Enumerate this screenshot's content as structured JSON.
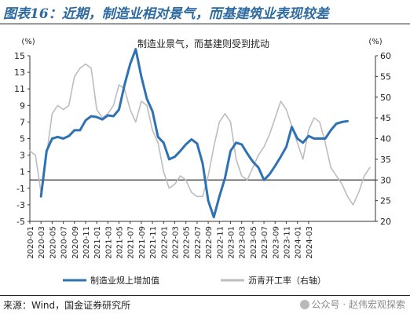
{
  "title": "图表16：近期，制造业相对景气，而基建筑业表现较差",
  "source": "来源：Wind，国金证券研究所",
  "watermark": "公众号 · 赵伟宏观探索",
  "chart_data": {
    "type": "line",
    "annotation": "制造业景气，而基建则受到扰动",
    "left_axis": {
      "unit": "(%)",
      "ylim": [
        -5,
        15
      ],
      "ticks": [
        -5,
        -3,
        -1,
        1,
        3,
        5,
        7,
        9,
        11,
        13,
        15
      ]
    },
    "right_axis": {
      "unit": "(%)",
      "ylim": [
        20,
        60
      ],
      "ticks": [
        20,
        25,
        30,
        35,
        40,
        45,
        50,
        55,
        60
      ]
    },
    "x_tick_labels": [
      "2020-01",
      "2020-03",
      "2020-05",
      "2020-07",
      "2020-09",
      "2020-11",
      "2021-01",
      "2021-03",
      "2021-05",
      "2021-07",
      "2021-09",
      "2021-11",
      "2022-01",
      "2022-03",
      "2022-05",
      "2022-07",
      "2022-09",
      "2022-11",
      "2023-01",
      "2023-03",
      "2023-05",
      "2023-07",
      "2023-09",
      "2023-11",
      "2024-01",
      "2024-03"
    ],
    "legend_position": "bottom",
    "colors": {
      "manufacturing": "#2e72b4",
      "asphalt": "#bdbdbd",
      "zero_line": "#333333"
    },
    "series": [
      {
        "name": "制造业规上增加值",
        "axis": "left",
        "points": [
          [
            "2020-03",
            -2.0
          ],
          [
            "2020-04",
            3.5
          ],
          [
            "2020-05",
            5.0
          ],
          [
            "2020-06",
            5.2
          ],
          [
            "2020-07",
            5.0
          ],
          [
            "2020-08",
            5.3
          ],
          [
            "2020-09",
            6.0
          ],
          [
            "2020-10",
            6.0
          ],
          [
            "2020-11",
            7.2
          ],
          [
            "2020-12",
            7.7
          ],
          [
            "2021-01",
            7.6
          ],
          [
            "2021-02",
            7.3
          ],
          [
            "2021-03",
            7.8
          ],
          [
            "2021-04",
            7.7
          ],
          [
            "2021-05",
            8.5
          ],
          [
            "2021-06",
            11.5
          ],
          [
            "2021-07",
            14.0
          ],
          [
            "2021-08",
            15.8
          ],
          [
            "2021-09",
            12.5
          ],
          [
            "2021-10",
            9.8
          ],
          [
            "2021-11",
            8.3
          ],
          [
            "2021-12",
            5.2
          ],
          [
            "2022-01",
            4.5
          ],
          [
            "2022-02",
            2.5
          ],
          [
            "2022-03",
            2.8
          ],
          [
            "2022-04",
            3.5
          ],
          [
            "2022-05",
            4.3
          ],
          [
            "2022-06",
            4.9
          ],
          [
            "2022-07",
            4.4
          ],
          [
            "2022-08",
            2.0
          ],
          [
            "2022-09",
            -2.5
          ],
          [
            "2022-10",
            -4.5
          ],
          [
            "2022-11",
            -2.0
          ],
          [
            "2022-12",
            0.2
          ],
          [
            "2023-01",
            3.5
          ],
          [
            "2023-02",
            4.5
          ],
          [
            "2023-03",
            4.3
          ],
          [
            "2023-04",
            3.2
          ],
          [
            "2023-05",
            2.2
          ],
          [
            "2023-06",
            1.5
          ],
          [
            "2023-07",
            0.0
          ],
          [
            "2023-08",
            0.7
          ],
          [
            "2023-09",
            1.7
          ],
          [
            "2023-10",
            2.8
          ],
          [
            "2023-11",
            4.0
          ],
          [
            "2023-12",
            6.4
          ],
          [
            "2024-01",
            5.0
          ],
          [
            "2024-02",
            4.5
          ],
          [
            "2024-03",
            5.3
          ],
          [
            "2024-04",
            5.0
          ],
          [
            "2024-05",
            5.0
          ],
          [
            "2024-06",
            5.0
          ],
          [
            "2024-07",
            6.0
          ],
          [
            "2024-08",
            6.8
          ],
          [
            "2024-09",
            7.0
          ],
          [
            "2024-10",
            7.1
          ]
        ]
      },
      {
        "name": "沥青开工率（右轴）",
        "axis": "right",
        "points": [
          [
            "2020-01",
            37
          ],
          [
            "2020-02",
            36
          ],
          [
            "2020-03",
            27
          ],
          [
            "2020-04",
            36
          ],
          [
            "2020-05",
            46
          ],
          [
            "2020-06",
            48
          ],
          [
            "2020-07",
            47
          ],
          [
            "2020-08",
            48
          ],
          [
            "2020-09",
            55
          ],
          [
            "2020-10",
            57
          ],
          [
            "2020-11",
            58
          ],
          [
            "2020-12",
            57
          ],
          [
            "2021-01",
            47
          ],
          [
            "2021-02",
            45
          ],
          [
            "2021-03",
            46
          ],
          [
            "2021-04",
            48
          ],
          [
            "2021-05",
            53
          ],
          [
            "2021-06",
            52
          ],
          [
            "2021-07",
            47
          ],
          [
            "2021-08",
            44
          ],
          [
            "2021-09",
            49
          ],
          [
            "2021-10",
            48
          ],
          [
            "2021-11",
            42
          ],
          [
            "2021-12",
            39
          ],
          [
            "2022-01",
            32
          ],
          [
            "2022-02",
            28
          ],
          [
            "2022-03",
            29
          ],
          [
            "2022-04",
            31
          ],
          [
            "2022-05",
            30
          ],
          [
            "2022-06",
            27
          ],
          [
            "2022-07",
            26
          ],
          [
            "2022-08",
            26
          ],
          [
            "2022-09",
            31
          ],
          [
            "2022-10",
            38
          ],
          [
            "2022-11",
            44
          ],
          [
            "2022-12",
            46
          ],
          [
            "2023-01",
            44
          ],
          [
            "2023-02",
            35
          ],
          [
            "2023-03",
            31
          ],
          [
            "2023-04",
            30
          ],
          [
            "2023-05",
            33
          ],
          [
            "2023-06",
            36
          ],
          [
            "2023-07",
            38
          ],
          [
            "2023-08",
            41
          ],
          [
            "2023-09",
            45
          ],
          [
            "2023-10",
            49
          ],
          [
            "2023-11",
            47
          ],
          [
            "2023-12",
            43
          ],
          [
            "2024-01",
            39
          ],
          [
            "2024-02",
            35
          ],
          [
            "2024-03",
            42
          ],
          [
            "2024-04",
            45
          ],
          [
            "2024-05",
            44
          ],
          [
            "2024-06",
            39
          ],
          [
            "2024-07",
            33
          ],
          [
            "2024-08",
            31
          ],
          [
            "2024-09",
            29
          ],
          [
            "2024-10",
            26
          ],
          [
            "2024-11",
            24
          ],
          [
            "2024-12",
            27
          ],
          [
            "2025-01",
            31
          ],
          [
            "2025-02",
            33
          ]
        ]
      }
    ]
  }
}
